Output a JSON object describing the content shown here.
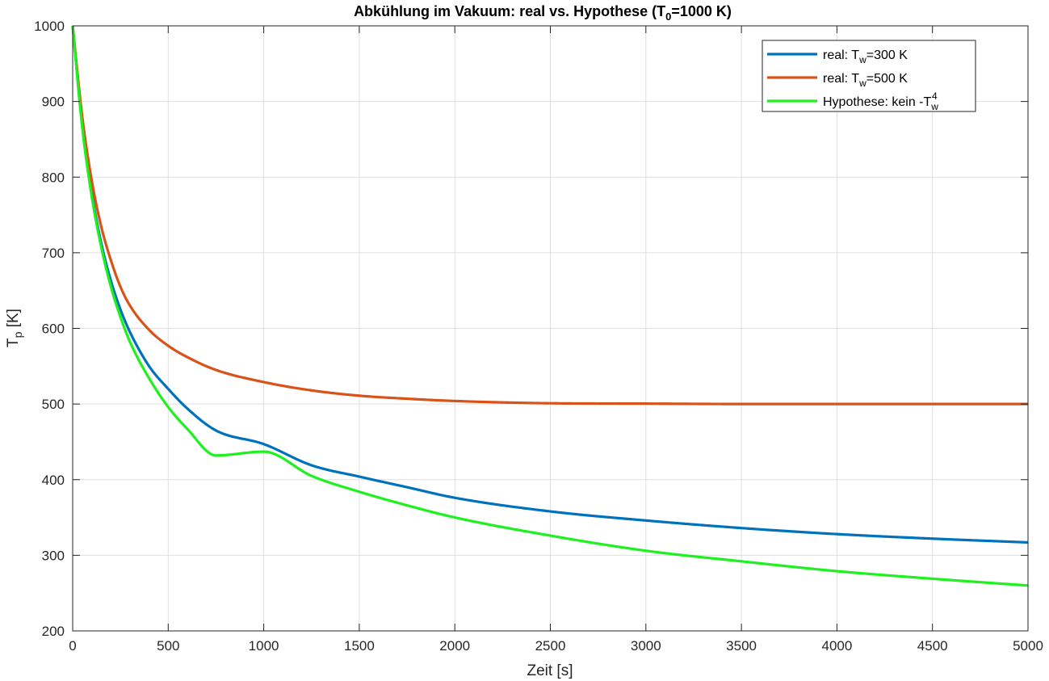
{
  "chart_data": {
    "type": "line",
    "title": "Abkühlung im Vakuum: real vs. Hypothese (T",
    "title_sub": "0",
    "title_tail": "=1000 K)",
    "xlabel": "Zeit [s]",
    "ylabel_main": "T",
    "ylabel_sub": "p",
    "ylabel_tail": " [K]",
    "xlim": [
      0,
      5000
    ],
    "ylim": [
      200,
      1000
    ],
    "xticks": [
      0,
      500,
      1000,
      1500,
      2000,
      2500,
      3000,
      3500,
      4000,
      4500,
      5000
    ],
    "yticks": [
      200,
      300,
      400,
      500,
      600,
      700,
      800,
      900,
      1000
    ],
    "grid": true,
    "legend_position": "top-right",
    "x": [
      0,
      50,
      100,
      150,
      200,
      250,
      300,
      400,
      500,
      600,
      750,
      1000,
      1250,
      1500,
      1750,
      2000,
      2500,
      3000,
      3500,
      4000,
      4500,
      5000
    ],
    "series": [
      {
        "name": "real: T_w=300 K",
        "legend": {
          "pre": "real: T",
          "sub": "w",
          "post": "=300 K"
        },
        "color": "#0072BD",
        "values": [
          1000,
          868,
          778,
          712,
          663,
          625,
          595,
          550,
          520,
          494,
          465,
          447,
          419,
          404,
          390,
          376,
          358,
          346,
          336,
          328,
          322,
          317
        ]
      },
      {
        "name": "real: T_w=500 K",
        "legend": {
          "pre": "real: T",
          "sub": "w",
          "post": "=500 K"
        },
        "color": "#D95319",
        "values": [
          1000,
          880,
          795,
          734,
          690,
          655,
          630,
          598,
          577,
          562,
          545,
          529,
          518,
          511,
          507,
          504,
          501,
          500.5,
          500,
          500,
          500,
          500
        ]
      },
      {
        "name": "Hypothese: kein -T_w^4",
        "legend": {
          "pre": "Hypothese: kein -T",
          "sub": "w",
          "sup": "4",
          "post": ""
        },
        "color": "#1FF01F",
        "values": [
          1000,
          866,
          774,
          707,
          655,
          615,
          582,
          534,
          496,
          467,
          432,
          437,
          405,
          384,
          366,
          350,
          326,
          306,
          292,
          279,
          269,
          260
        ]
      }
    ]
  }
}
